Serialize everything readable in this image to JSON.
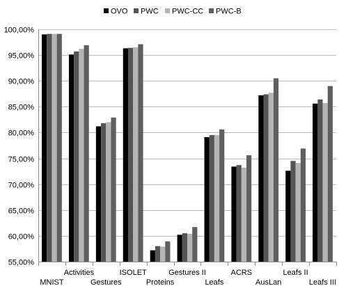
{
  "chart_data": {
    "type": "bar",
    "title": "",
    "xlabel": "",
    "ylabel": "",
    "ylim": [
      0.55,
      1.0
    ],
    "yticks": [
      "55,00%",
      "60,00%",
      "65,00%",
      "70,00%",
      "75,00%",
      "80,00%",
      "85,00%",
      "90,00%",
      "95,00%",
      "100,00%"
    ],
    "ytick_values": [
      0.55,
      0.6,
      0.65,
      0.7,
      0.75,
      0.8,
      0.85,
      0.9,
      0.95,
      1.0
    ],
    "grid": "horizontal",
    "legend_position": "top",
    "categories": [
      "MNIST",
      "Activities",
      "Gestures",
      "ISOLET",
      "Proteins",
      "Gestures II",
      "Leafs",
      "ACRS",
      "AusLan",
      "Leafs II",
      "Leafs III"
    ],
    "category_label_row": [
      "bottom",
      "top",
      "bottom",
      "top",
      "bottom",
      "top",
      "bottom",
      "top",
      "bottom",
      "top",
      "bottom"
    ],
    "series": [
      {
        "name": "OVO",
        "color": "#000000",
        "values": [
          0.99,
          0.951,
          0.812,
          0.963,
          0.572,
          0.602,
          0.791,
          0.734,
          0.872,
          0.726,
          0.856
        ]
      },
      {
        "name": "PWC",
        "color": "#555555",
        "values": [
          0.991,
          0.957,
          0.818,
          0.964,
          0.58,
          0.605,
          0.795,
          0.737,
          0.874,
          0.745,
          0.864
        ]
      },
      {
        "name": "PWC-CC",
        "color": "#b5b5b5",
        "values": [
          0.991,
          0.962,
          0.82,
          0.965,
          0.579,
          0.604,
          0.795,
          0.732,
          0.877,
          0.741,
          0.857
        ]
      },
      {
        "name": "PWC-B",
        "color": "#5f5f5f",
        "values": [
          0.991,
          0.969,
          0.829,
          0.971,
          0.589,
          0.617,
          0.806,
          0.756,
          0.905,
          0.769,
          0.89
        ]
      }
    ]
  }
}
